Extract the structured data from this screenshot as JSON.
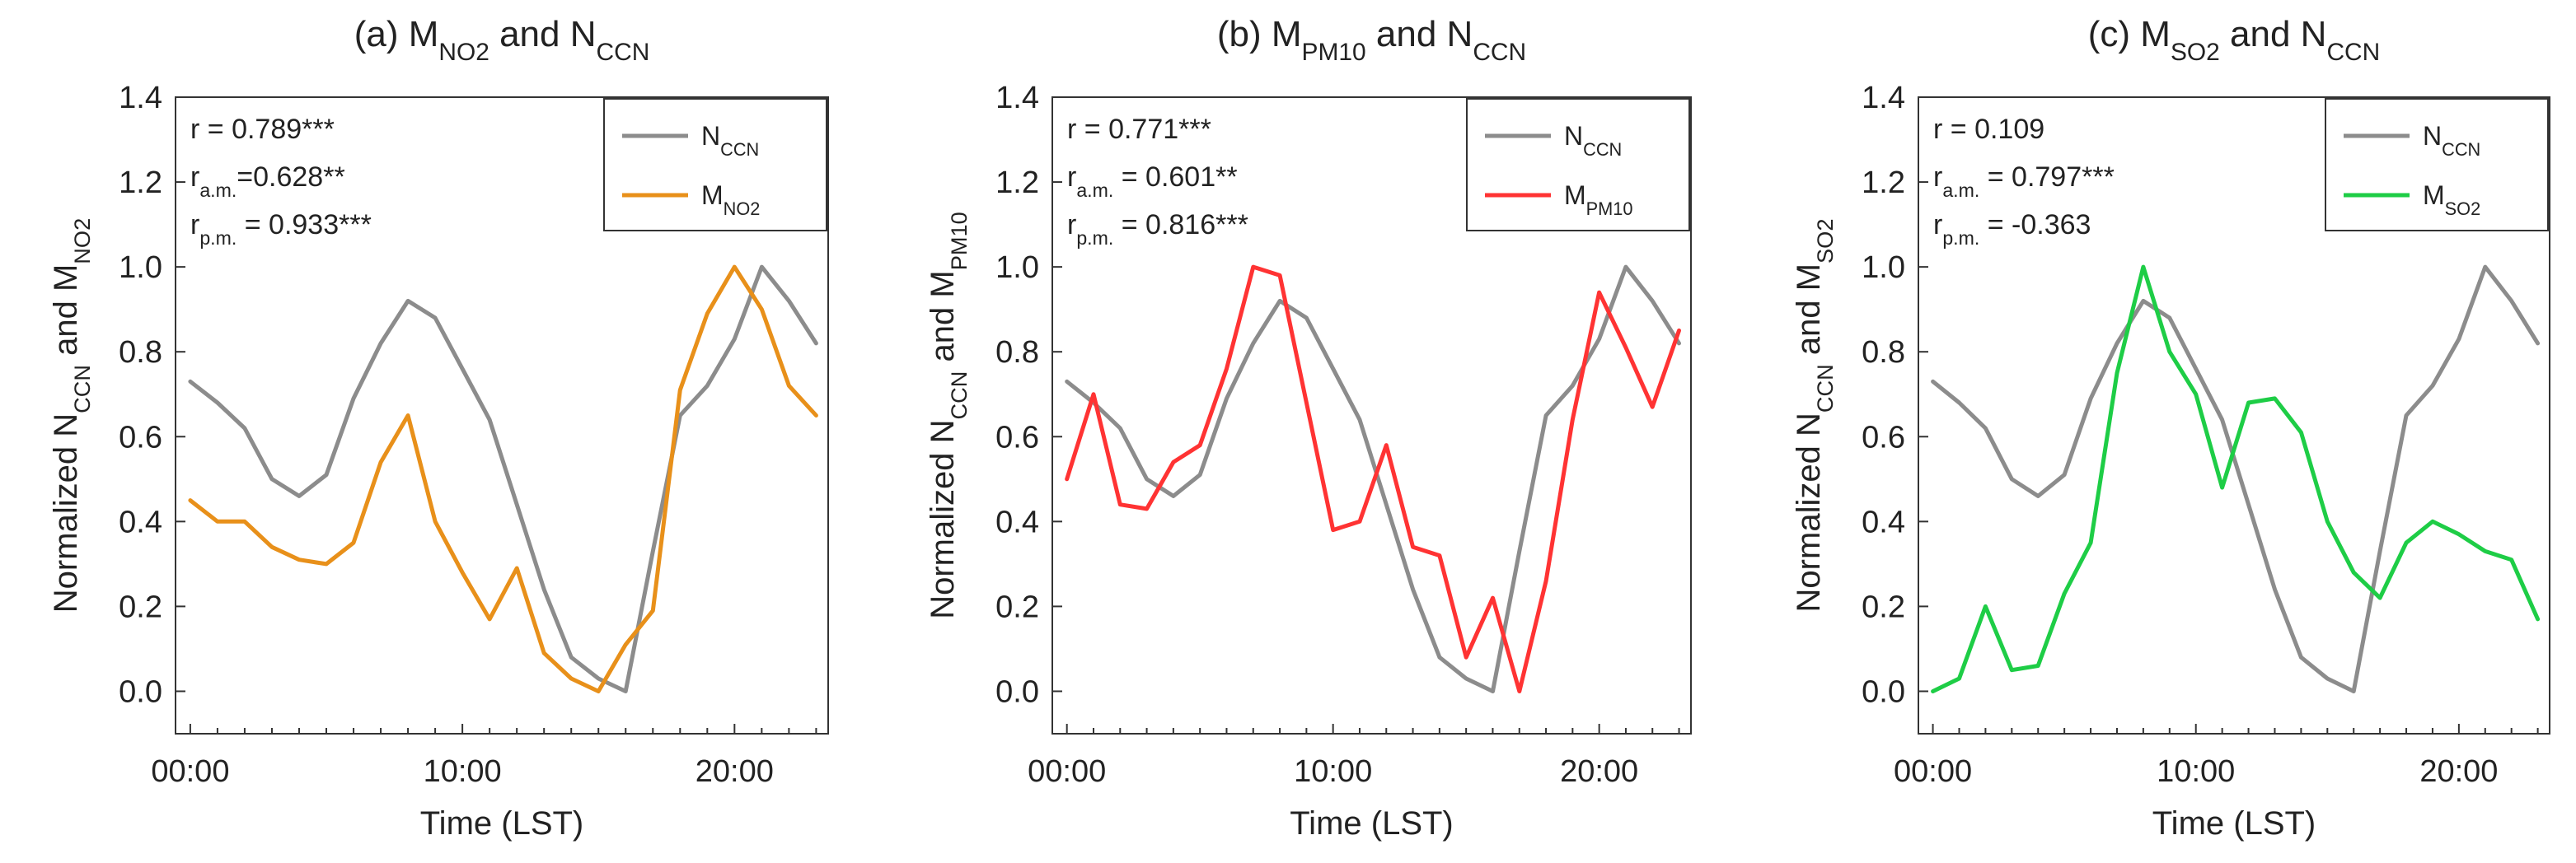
{
  "figure": {
    "xlabel": "Time (LST)",
    "x_tick_labels": [
      "00:00",
      "10:00",
      "20:00"
    ],
    "y_tick_labels": [
      "0.0",
      "0.2",
      "0.4",
      "0.6",
      "0.8",
      "1.0",
      "1.2",
      "1.4"
    ]
  },
  "colors": {
    "nccn": "#8c8c8c",
    "no2": "#e8901a",
    "pm10": "#ff3333",
    "so2": "#1ecd46"
  },
  "chart_data": [
    {
      "type": "line",
      "panel": "a",
      "title": "(a) M<sub>NO2</sub> and N<sub>CCN</sub>",
      "xlabel": "Time (LST)",
      "ylabel": "Normalized N<sub>CCN</sub> and M<sub>NO2</sub>",
      "xlim": [
        0,
        23
      ],
      "ylim": [
        -0.1,
        1.4
      ],
      "x": [
        0,
        1,
        2,
        3,
        4,
        5,
        6,
        7,
        8,
        9,
        10,
        11,
        12,
        13,
        14,
        15,
        16,
        17,
        18,
        19,
        20,
        21,
        22,
        23
      ],
      "legend_position": "top-right",
      "stats": [
        "r = 0.789***",
        "r<sub>a.m.</sub>=0.628**",
        "r<sub>p.m.</sub> = 0.933***"
      ],
      "series": [
        {
          "name": "N<sub>CCN</sub>",
          "color": "#8c8c8c",
          "values": [
            0.73,
            0.68,
            0.62,
            0.5,
            0.46,
            0.51,
            0.69,
            0.82,
            0.92,
            0.88,
            0.76,
            0.64,
            0.44,
            0.24,
            0.08,
            0.03,
            0.0,
            0.33,
            0.65,
            0.72,
            0.83,
            1.0,
            0.92,
            0.82
          ]
        },
        {
          "name": "M<sub>NO2</sub>",
          "color": "#e8901a",
          "values": [
            0.45,
            0.4,
            0.4,
            0.34,
            0.31,
            0.3,
            0.35,
            0.54,
            0.65,
            0.4,
            0.28,
            0.17,
            0.29,
            0.09,
            0.03,
            0.0,
            0.11,
            0.19,
            0.71,
            0.89,
            1.0,
            0.9,
            0.72,
            0.65
          ]
        }
      ]
    },
    {
      "type": "line",
      "panel": "b",
      "title": "(b) M<sub>PM10</sub> and N<sub>CCN</sub>",
      "xlabel": "Time (LST)",
      "ylabel": "Normalized N<sub>CCN</sub> and M<sub>PM10</sub>",
      "xlim": [
        0,
        23
      ],
      "ylim": [
        -0.1,
        1.4
      ],
      "x": [
        0,
        1,
        2,
        3,
        4,
        5,
        6,
        7,
        8,
        9,
        10,
        11,
        12,
        13,
        14,
        15,
        16,
        17,
        18,
        19,
        20,
        21,
        22,
        23
      ],
      "legend_position": "top-right",
      "stats": [
        "r = 0.771***",
        "r<sub>a.m.</sub> = 0.601**",
        "r<sub>p.m.</sub> = 0.816***"
      ],
      "series": [
        {
          "name": "N<sub>CCN</sub>",
          "color": "#8c8c8c",
          "values": [
            0.73,
            0.68,
            0.62,
            0.5,
            0.46,
            0.51,
            0.69,
            0.82,
            0.92,
            0.88,
            0.76,
            0.64,
            0.44,
            0.24,
            0.08,
            0.03,
            0.0,
            0.33,
            0.65,
            0.72,
            0.83,
            1.0,
            0.92,
            0.82
          ]
        },
        {
          "name": "M<sub>PM10</sub>",
          "color": "#ff3333",
          "values": [
            0.5,
            0.7,
            0.44,
            0.43,
            0.54,
            0.58,
            0.76,
            1.0,
            0.98,
            0.68,
            0.38,
            0.4,
            0.58,
            0.34,
            0.32,
            0.08,
            0.22,
            0.0,
            0.26,
            0.64,
            0.94,
            0.81,
            0.67,
            0.85
          ]
        }
      ]
    },
    {
      "type": "line",
      "panel": "c",
      "title": "(c) M<sub>SO2</sub> and N<sub>CCN</sub>",
      "xlabel": "Time (LST)",
      "ylabel": "Normalized N<sub>CCN</sub> and M<sub>SO2</sub>",
      "xlim": [
        0,
        23
      ],
      "ylim": [
        -0.1,
        1.4
      ],
      "x": [
        0,
        1,
        2,
        3,
        4,
        5,
        6,
        7,
        8,
        9,
        10,
        11,
        12,
        13,
        14,
        15,
        16,
        17,
        18,
        19,
        20,
        21,
        22,
        23
      ],
      "legend_position": "top-right",
      "stats": [
        "r = 0.109",
        "r<sub>a.m.</sub> = 0.797***",
        "r<sub>p.m.</sub> = -0.363"
      ],
      "series": [
        {
          "name": "N<sub>CCN</sub>",
          "color": "#8c8c8c",
          "values": [
            0.73,
            0.68,
            0.62,
            0.5,
            0.46,
            0.51,
            0.69,
            0.82,
            0.92,
            0.88,
            0.76,
            0.64,
            0.44,
            0.24,
            0.08,
            0.03,
            0.0,
            0.33,
            0.65,
            0.72,
            0.83,
            1.0,
            0.92,
            0.82
          ]
        },
        {
          "name": "M<sub>SO2</sub>",
          "color": "#1ecd46",
          "values": [
            0.0,
            0.03,
            0.2,
            0.05,
            0.06,
            0.23,
            0.35,
            0.75,
            1.0,
            0.8,
            0.7,
            0.48,
            0.68,
            0.69,
            0.61,
            0.4,
            0.28,
            0.22,
            0.35,
            0.4,
            0.37,
            0.33,
            0.31,
            0.17
          ]
        }
      ]
    }
  ]
}
